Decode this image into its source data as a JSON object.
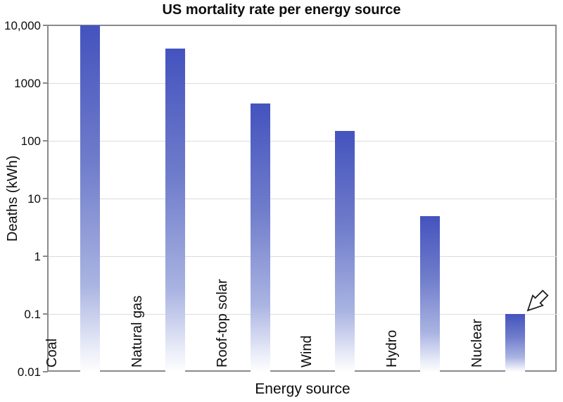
{
  "title": "US mortality rate per energy source",
  "axes": {
    "y_label": "Deaths (kWh)",
    "x_label": "Energy source"
  },
  "chart_data": {
    "type": "bar",
    "title": "US mortality rate per energy source",
    "xlabel": "Energy source",
    "ylabel": "Deaths (kWh)",
    "y_scale": "log",
    "ylim": [
      0.01,
      10000
    ],
    "y_tick_labels": [
      "10,000",
      "1000",
      "100",
      "10",
      "1",
      "0.1",
      "0.01"
    ],
    "y_tick_values": [
      10000,
      1000,
      100,
      10,
      1,
      0.1,
      0.01
    ],
    "categories": [
      "Coal",
      "Natural gas",
      "Roof-top solar",
      "Wind",
      "Hydro",
      "Nuclear"
    ],
    "values": [
      10000,
      4000,
      440,
      150,
      5,
      0.1
    ],
    "grid": "horizontal-major",
    "legend": "none",
    "bar_gradient_stops": [
      {
        "pos": "0%",
        "color": "#4453be"
      },
      {
        "pos": "40%",
        "color": "#707dcb"
      },
      {
        "pos": "75%",
        "color": "#aab4e2"
      },
      {
        "pos": "94%",
        "color": "#eceef9"
      },
      {
        "pos": "100%",
        "color": "#fefefe"
      }
    ],
    "gridline_color": "#dcdcdc",
    "axis_border_color": "#8a8a8a",
    "annotation": {
      "type": "arrow",
      "target_category": "Nuclear",
      "target_value": 0.1,
      "direction": "pointing-down-left",
      "style": "outlined-white-fill-black-stroke"
    }
  }
}
